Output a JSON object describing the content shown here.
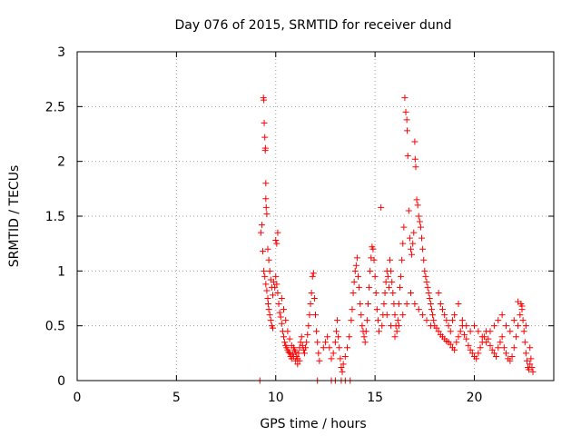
{
  "chart_data": {
    "type": "scatter",
    "title": "Day 076 of 2015, SRMTID for receiver dund",
    "xlabel": "GPS time / hours",
    "ylabel": "SRMTID / TECUs",
    "xlim": [
      0,
      24
    ],
    "ylim": [
      0,
      3
    ],
    "xticks": [
      0,
      5,
      10,
      15,
      20
    ],
    "yticks": [
      0,
      0.5,
      1,
      1.5,
      2,
      2.5,
      3
    ],
    "ytick_labels": [
      "0",
      "0.5",
      "1",
      "1.5",
      "2",
      "2.5",
      "3"
    ],
    "grid": true,
    "marker": "+",
    "color": "#ff0000",
    "series": [
      {
        "points": [
          [
            9.25,
            1.35
          ],
          [
            9.3,
            1.42
          ],
          [
            9.35,
            1.18
          ],
          [
            9.38,
            2.58
          ],
          [
            9.4,
            2.56
          ],
          [
            9.42,
            2.35
          ],
          [
            9.45,
            2.22
          ],
          [
            9.47,
            2.1
          ],
          [
            9.48,
            2.12
          ],
          [
            9.5,
            1.8
          ],
          [
            9.5,
            1.66
          ],
          [
            9.52,
            1.58
          ],
          [
            9.55,
            1.52
          ],
          [
            9.4,
            1.0
          ],
          [
            9.45,
            0.95
          ],
          [
            9.5,
            0.88
          ],
          [
            9.55,
            0.82
          ],
          [
            9.6,
            0.75
          ],
          [
            9.62,
            0.7
          ],
          [
            9.65,
            0.65
          ],
          [
            9.7,
            0.6
          ],
          [
            9.75,
            0.55
          ],
          [
            9.8,
            0.5
          ],
          [
            9.85,
            0.48
          ],
          [
            9.6,
            1.2
          ],
          [
            9.65,
            1.1
          ],
          [
            9.7,
            1.0
          ],
          [
            9.75,
            0.92
          ],
          [
            9.8,
            0.85
          ],
          [
            9.85,
            0.78
          ],
          [
            9.9,
            0.9
          ],
          [
            9.95,
            0.85
          ],
          [
            10.0,
            1.28
          ],
          [
            10.05,
            1.25
          ],
          [
            10.1,
            1.35
          ],
          [
            10.0,
            0.95
          ],
          [
            10.05,
            0.88
          ],
          [
            10.1,
            0.8
          ],
          [
            10.15,
            0.7
          ],
          [
            10.2,
            0.62
          ],
          [
            10.25,
            0.58
          ],
          [
            10.3,
            0.52
          ],
          [
            10.35,
            0.45
          ],
          [
            10.4,
            0.4
          ],
          [
            10.45,
            0.35
          ],
          [
            10.5,
            0.32
          ],
          [
            10.55,
            0.3
          ],
          [
            10.6,
            0.28
          ],
          [
            10.65,
            0.26
          ],
          [
            10.7,
            0.25
          ],
          [
            10.75,
            0.22
          ],
          [
            10.8,
            0.2
          ],
          [
            10.85,
            0.24
          ],
          [
            10.9,
            0.3
          ],
          [
            10.95,
            0.28
          ],
          [
            11.0,
            0.26
          ],
          [
            11.05,
            0.22
          ],
          [
            11.1,
            0.2
          ],
          [
            11.15,
            0.25
          ],
          [
            11.2,
            0.3
          ],
          [
            11.25,
            0.35
          ],
          [
            11.3,
            0.4
          ],
          [
            11.35,
            0.32
          ],
          [
            11.4,
            0.28
          ],
          [
            11.45,
            0.25
          ],
          [
            11.5,
            0.3
          ],
          [
            11.55,
            0.35
          ],
          [
            11.6,
            0.42
          ],
          [
            11.65,
            0.5
          ],
          [
            11.7,
            0.6
          ],
          [
            11.75,
            0.7
          ],
          [
            11.8,
            0.8
          ],
          [
            11.85,
            0.95
          ],
          [
            11.9,
            0.98
          ],
          [
            11.95,
            0.75
          ],
          [
            12.0,
            0.6
          ],
          [
            12.05,
            0.45
          ],
          [
            12.1,
            0.35
          ],
          [
            12.15,
            0.25
          ],
          [
            12.2,
            0.18
          ],
          [
            10.3,
            0.75
          ],
          [
            10.4,
            0.65
          ],
          [
            10.5,
            0.55
          ],
          [
            10.6,
            0.45
          ],
          [
            10.7,
            0.38
          ],
          [
            10.8,
            0.32
          ],
          [
            10.9,
            0.22
          ],
          [
            11.0,
            0.18
          ],
          [
            11.1,
            0.15
          ],
          [
            11.2,
            0.18
          ],
          [
            12.4,
            0.3
          ],
          [
            12.5,
            0.35
          ],
          [
            12.6,
            0.4
          ],
          [
            12.7,
            0.3
          ],
          [
            12.8,
            0.2
          ],
          [
            12.9,
            0.25
          ],
          [
            13.0,
            0.35
          ],
          [
            13.05,
            0.45
          ],
          [
            13.1,
            0.55
          ],
          [
            13.15,
            0.4
          ],
          [
            13.2,
            0.3
          ],
          [
            13.25,
            0.2
          ],
          [
            13.3,
            0.12
          ],
          [
            13.35,
            0.08
          ],
          [
            13.4,
            0.15
          ],
          [
            13.5,
            0.22
          ],
          [
            13.6,
            0.3
          ],
          [
            13.7,
            0.4
          ],
          [
            13.8,
            0.55
          ],
          [
            13.85,
            0.65
          ],
          [
            13.9,
            0.8
          ],
          [
            13.95,
            0.9
          ],
          [
            14.0,
            1.0
          ],
          [
            14.05,
            1.05
          ],
          [
            14.1,
            1.12
          ],
          [
            14.15,
            0.95
          ],
          [
            14.2,
            0.85
          ],
          [
            14.25,
            0.7
          ],
          [
            14.3,
            0.6
          ],
          [
            14.35,
            0.5
          ],
          [
            14.4,
            0.45
          ],
          [
            14.45,
            0.4
          ],
          [
            14.5,
            0.35
          ],
          [
            14.55,
            0.45
          ],
          [
            14.6,
            0.55
          ],
          [
            14.65,
            0.7
          ],
          [
            14.7,
            0.85
          ],
          [
            14.75,
            1.0
          ],
          [
            14.8,
            1.12
          ],
          [
            14.85,
            1.22
          ],
          [
            14.9,
            1.2
          ],
          [
            14.95,
            1.1
          ],
          [
            15.0,
            0.95
          ],
          [
            15.05,
            0.8
          ],
          [
            15.1,
            0.65
          ],
          [
            15.15,
            0.55
          ],
          [
            15.2,
            0.45
          ],
          [
            15.3,
            1.58
          ],
          [
            15.35,
            0.5
          ],
          [
            15.4,
            0.6
          ],
          [
            15.45,
            0.7
          ],
          [
            15.5,
            0.8
          ],
          [
            15.55,
            0.9
          ],
          [
            15.6,
            1.0
          ],
          [
            15.65,
            0.95
          ],
          [
            15.7,
            0.85
          ],
          [
            15.75,
            1.1
          ],
          [
            15.8,
            1.0
          ],
          [
            15.85,
            0.9
          ],
          [
            15.9,
            0.8
          ],
          [
            15.95,
            0.7
          ],
          [
            16.0,
            0.6
          ],
          [
            16.05,
            0.5
          ],
          [
            16.1,
            0.45
          ],
          [
            16.15,
            0.55
          ],
          [
            16.2,
            0.7
          ],
          [
            16.25,
            0.85
          ],
          [
            16.3,
            0.95
          ],
          [
            16.35,
            1.1
          ],
          [
            16.4,
            1.25
          ],
          [
            16.45,
            1.4
          ],
          [
            16.5,
            2.58
          ],
          [
            16.55,
            2.45
          ],
          [
            16.6,
            2.38
          ],
          [
            16.62,
            2.28
          ],
          [
            16.65,
            2.05
          ],
          [
            16.7,
            1.55
          ],
          [
            16.75,
            1.3
          ],
          [
            16.8,
            1.2
          ],
          [
            16.85,
            1.15
          ],
          [
            16.9,
            1.25
          ],
          [
            16.95,
            1.35
          ],
          [
            17.0,
            2.18
          ],
          [
            17.02,
            2.02
          ],
          [
            17.05,
            1.95
          ],
          [
            17.1,
            1.65
          ],
          [
            17.15,
            1.6
          ],
          [
            17.2,
            1.5
          ],
          [
            17.25,
            1.45
          ],
          [
            17.3,
            1.4
          ],
          [
            17.35,
            1.3
          ],
          [
            17.4,
            1.2
          ],
          [
            17.45,
            1.1
          ],
          [
            17.5,
            1.0
          ],
          [
            17.55,
            0.95
          ],
          [
            17.6,
            0.9
          ],
          [
            17.65,
            0.85
          ],
          [
            17.7,
            0.8
          ],
          [
            17.75,
            0.75
          ],
          [
            17.8,
            0.7
          ],
          [
            17.85,
            0.65
          ],
          [
            17.9,
            0.6
          ],
          [
            17.95,
            0.55
          ],
          [
            18.0,
            0.5
          ],
          [
            18.1,
            0.48
          ],
          [
            18.2,
            0.45
          ],
          [
            18.3,
            0.42
          ],
          [
            18.4,
            0.4
          ],
          [
            18.5,
            0.38
          ],
          [
            18.6,
            0.36
          ],
          [
            18.7,
            0.35
          ],
          [
            18.8,
            0.33
          ],
          [
            18.9,
            0.3
          ],
          [
            19.0,
            0.28
          ],
          [
            19.1,
            0.35
          ],
          [
            19.2,
            0.4
          ],
          [
            19.3,
            0.45
          ],
          [
            19.4,
            0.5
          ],
          [
            19.5,
            0.42
          ],
          [
            19.6,
            0.38
          ],
          [
            19.7,
            0.32
          ],
          [
            19.8,
            0.28
          ],
          [
            19.9,
            0.25
          ],
          [
            20.0,
            0.22
          ],
          [
            20.1,
            0.2
          ],
          [
            20.2,
            0.25
          ],
          [
            20.3,
            0.3
          ],
          [
            20.4,
            0.35
          ],
          [
            20.5,
            0.4
          ],
          [
            20.6,
            0.45
          ],
          [
            20.7,
            0.38
          ],
          [
            20.8,
            0.32
          ],
          [
            20.9,
            0.28
          ],
          [
            21.0,
            0.25
          ],
          [
            21.1,
            0.22
          ],
          [
            21.2,
            0.3
          ],
          [
            21.3,
            0.35
          ],
          [
            21.4,
            0.4
          ],
          [
            21.5,
            0.3
          ],
          [
            21.6,
            0.25
          ],
          [
            21.7,
            0.2
          ],
          [
            21.8,
            0.18
          ],
          [
            21.9,
            0.22
          ],
          [
            22.0,
            0.3
          ],
          [
            22.1,
            0.4
          ],
          [
            22.2,
            0.5
          ],
          [
            22.3,
            0.6
          ],
          [
            22.35,
            0.7
          ],
          [
            22.4,
            0.65
          ],
          [
            22.45,
            0.55
          ],
          [
            22.5,
            0.45
          ],
          [
            22.55,
            0.35
          ],
          [
            22.6,
            0.25
          ],
          [
            22.65,
            0.18
          ],
          [
            22.7,
            0.12
          ],
          [
            22.75,
            0.1
          ],
          [
            22.8,
            0.15
          ],
          [
            22.85,
            0.2
          ],
          [
            22.9,
            0.12
          ],
          [
            22.95,
            0.08
          ],
          [
            18.2,
            0.8
          ],
          [
            18.3,
            0.7
          ],
          [
            18.4,
            0.65
          ],
          [
            18.5,
            0.6
          ],
          [
            18.6,
            0.55
          ],
          [
            18.7,
            0.5
          ],
          [
            18.8,
            0.45
          ],
          [
            18.9,
            0.55
          ],
          [
            19.0,
            0.6
          ],
          [
            19.2,
            0.7
          ],
          [
            19.4,
            0.55
          ],
          [
            19.6,
            0.5
          ],
          [
            19.8,
            0.45
          ],
          [
            20.0,
            0.5
          ],
          [
            20.2,
            0.45
          ],
          [
            20.4,
            0.4
          ],
          [
            20.6,
            0.35
          ],
          [
            20.8,
            0.45
          ],
          [
            21.0,
            0.5
          ],
          [
            21.2,
            0.55
          ],
          [
            21.4,
            0.6
          ],
          [
            21.6,
            0.5
          ],
          [
            21.8,
            0.45
          ],
          [
            22.0,
            0.55
          ],
          [
            22.2,
            0.72
          ],
          [
            22.4,
            0.68
          ],
          [
            22.6,
            0.5
          ],
          [
            22.8,
            0.3
          ],
          [
            17.0,
            0.7
          ],
          [
            17.2,
            0.65
          ],
          [
            17.4,
            0.6
          ],
          [
            17.6,
            0.55
          ],
          [
            17.8,
            0.5
          ],
          [
            16.8,
            0.8
          ],
          [
            16.6,
            0.7
          ],
          [
            16.4,
            0.6
          ],
          [
            16.2,
            0.5
          ],
          [
            16.0,
            0.4
          ],
          [
            15.8,
            0.5
          ],
          [
            15.6,
            0.6
          ],
          [
            9.2,
            0.0
          ],
          [
            12.1,
            0.0
          ],
          [
            12.8,
            0.0
          ],
          [
            13.0,
            0.0
          ],
          [
            13.3,
            0.0
          ],
          [
            13.5,
            0.0
          ],
          [
            13.75,
            0.0
          ]
        ]
      }
    ]
  }
}
